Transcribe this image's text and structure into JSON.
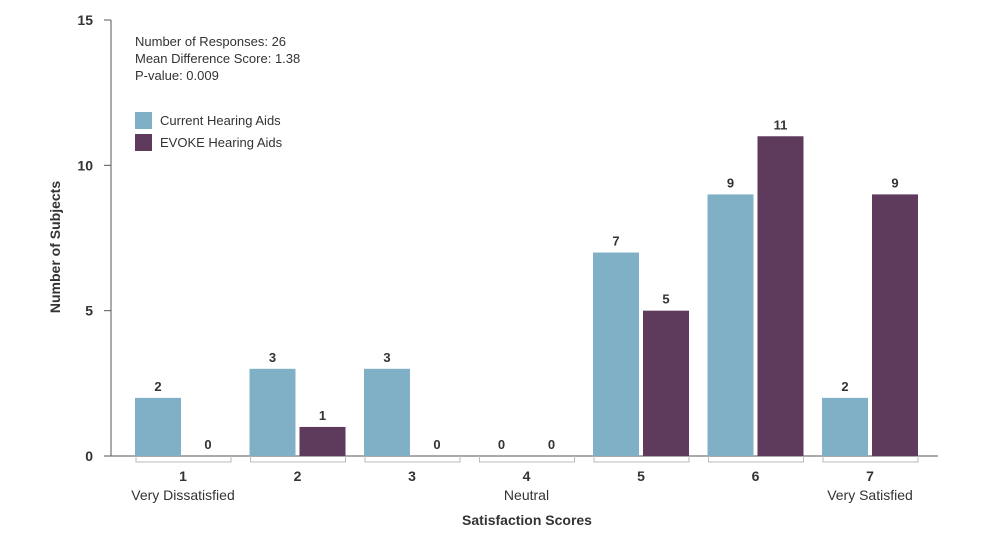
{
  "chart_data": {
    "type": "bar",
    "title": "",
    "xlabel": "Satisfaction Scores",
    "ylabel": "Number of Subjects",
    "ylim": [
      0,
      15
    ],
    "yticks": [
      "0",
      "5",
      "10",
      "15"
    ],
    "grid": false,
    "legend_position": "top-left",
    "categories": [
      "1",
      "2",
      "3",
      "4",
      "5",
      "6",
      "7"
    ],
    "category_sublabels": [
      "Very Dissatisfied",
      "",
      "",
      "Neutral",
      "",
      "",
      "Very Satisfied"
    ],
    "series": [
      {
        "name": "Current Hearing Aids",
        "color": "#7fb0c6",
        "values": [
          2,
          3,
          3,
          0,
          7,
          9,
          2
        ]
      },
      {
        "name": "EVOKE Hearing Aids",
        "color": "#5e3a5c",
        "values": [
          0,
          1,
          0,
          0,
          5,
          11,
          9
        ]
      }
    ],
    "annotations": [
      "Number of Responses: 26",
      "Mean Difference Score: 1.38",
      "P-value: 0.009"
    ]
  }
}
